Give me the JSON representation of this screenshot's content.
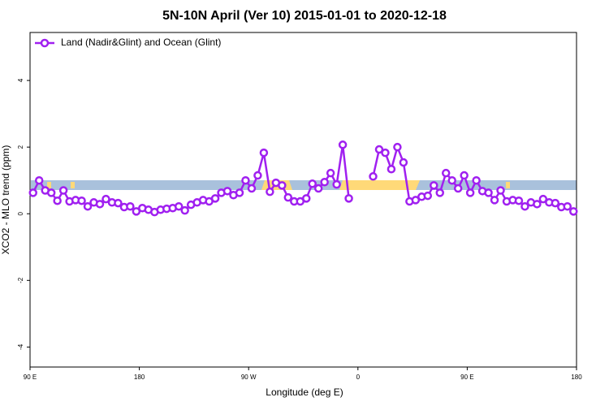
{
  "chart_data": {
    "type": "line",
    "title": "5N-10N April (Ver 10)   2015-01-01 to 2020-12-18",
    "x_label": "Longitude (deg E)",
    "y_label": "XCO2 - MLO trend (ppm)",
    "x": [
      92.5,
      97.5,
      102.5,
      107.5,
      112.5,
      117.5,
      122.5,
      127.5,
      132.5,
      137.5,
      142.5,
      147.5,
      152.5,
      157.5,
      162.5,
      167.5,
      172.5,
      177.5,
      182.5,
      187.5,
      192.5,
      197.5,
      202.5,
      207.5,
      212.5,
      217.5,
      222.5,
      227.5,
      232.5,
      237.5,
      242.5,
      247.5,
      252.5,
      257.5,
      262.5,
      267.5,
      272.5,
      277.5,
      282.5,
      287.5,
      292.5,
      297.5,
      302.5,
      307.5,
      312.5,
      317.5,
      322.5,
      327.5,
      332.5,
      337.5,
      342.5,
      347.5,
      352.5,
      357.5,
      362.5,
      367.5,
      372.5,
      377.5,
      382.5,
      387.5,
      392.5,
      397.5,
      402.5,
      407.5,
      412.5,
      417.5,
      422.5,
      427.5,
      432.5,
      437.5,
      442.5,
      447.5,
      452.5,
      457.5,
      462.5,
      467.5,
      472.5,
      477.5,
      482.5,
      487.5,
      492.5,
      497.5,
      502.5,
      507.5,
      512.5,
      517.5,
      522.5,
      527.5,
      532.5,
      537.5
    ],
    "series": [
      {
        "name": "Land (Nadir&Glint) and Ocean (Glint)",
        "color": "#a020f0",
        "values": [
          0.63,
          1.0,
          0.7,
          0.63,
          0.39,
          0.7,
          0.37,
          0.41,
          0.39,
          0.22,
          0.34,
          0.29,
          0.44,
          0.34,
          0.32,
          0.2,
          0.22,
          0.07,
          0.17,
          0.12,
          0.05,
          0.12,
          0.15,
          0.17,
          0.22,
          0.1,
          0.27,
          0.34,
          0.41,
          0.37,
          0.46,
          0.63,
          0.68,
          0.56,
          0.63,
          1.0,
          0.76,
          1.15,
          1.83,
          0.66,
          0.93,
          0.85,
          0.49,
          0.37,
          0.37,
          0.46,
          0.9,
          0.76,
          0.95,
          1.22,
          0.88,
          2.07,
          0.46,
          null,
          null,
          null,
          1.12,
          1.93,
          1.83,
          1.34,
          2.0,
          1.54,
          0.37,
          0.41,
          0.51,
          0.54,
          0.85,
          0.63,
          1.22,
          1.0,
          0.76,
          1.15,
          0.63,
          1.0,
          0.68,
          0.63,
          0.41,
          0.7,
          0.37,
          0.41,
          0.39,
          0.22,
          0.34,
          0.29,
          0.44,
          0.34,
          0.32,
          0.2,
          0.22,
          0.07
        ]
      }
    ],
    "xlim": [
      90,
      540
    ],
    "xticks": [
      {
        "value": 90,
        "label": "90 E"
      },
      180,
      {
        "value": 270,
        "label": "90 W"
      },
      {
        "value": 360,
        "label": "0"
      },
      {
        "value": 450,
        "label": "90 E"
      },
      {
        "value": 540,
        "label": "180"
      }
    ],
    "ylim": [
      -4.6,
      5.44
    ],
    "yticks": [
      -4,
      -2,
      0,
      2,
      4
    ],
    "legend": "top-left"
  }
}
